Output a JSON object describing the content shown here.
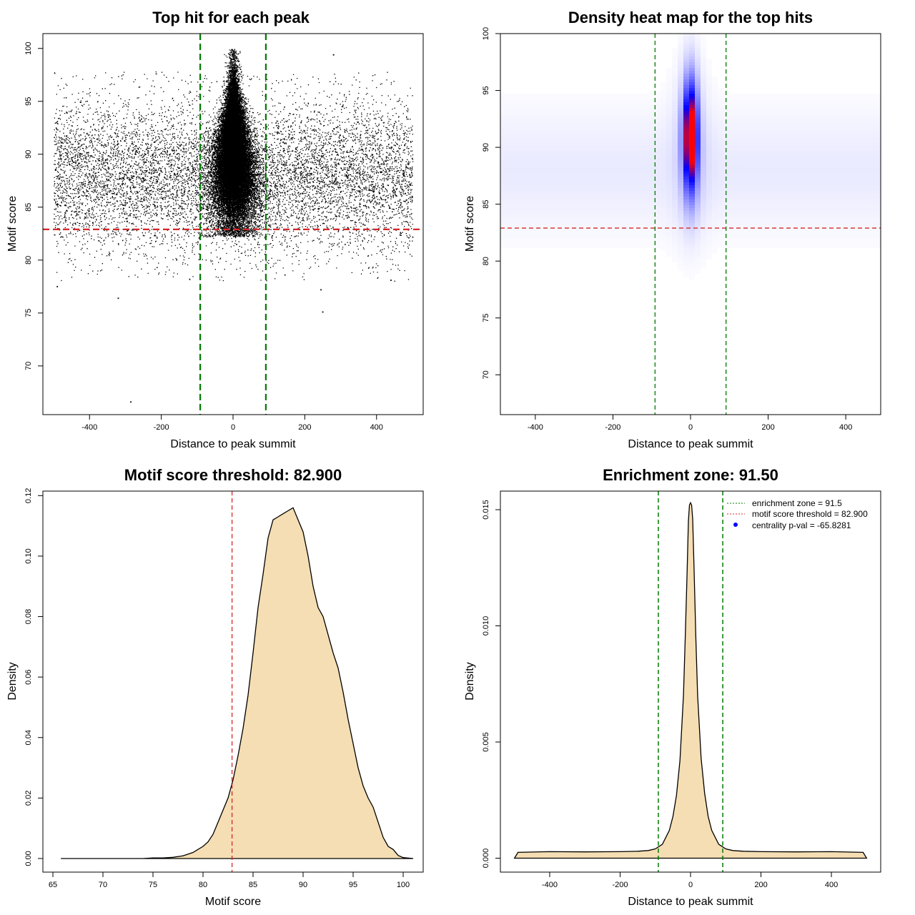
{
  "chart_data": [
    {
      "id": "scatter",
      "type": "scatter",
      "title": "Top hit for each peak",
      "xlabel": "Distance to peak summit",
      "ylabel": "Motif score",
      "xlim": [
        -530,
        530
      ],
      "ylim": [
        65.4,
        101.4
      ],
      "xticks": [
        -400,
        -200,
        0,
        200,
        400
      ],
      "yticks": [
        70,
        75,
        80,
        85,
        90,
        95,
        100
      ],
      "threshold_line": {
        "value": 82.9,
        "color": "#d62728"
      },
      "zone_lines": {
        "values": [
          -91.5,
          91.5
        ],
        "color": "#007a00"
      },
      "point_model": {
        "background": {
          "x_range": [
            -500,
            500
          ],
          "score_mean": 88,
          "score_sd": 3.6,
          "count": 9000
        },
        "core": {
          "x_mean": 0,
          "x_sd": 30,
          "score_mean": 90,
          "score_sd": 3.3,
          "count": 30000
        }
      },
      "outliers": [
        {
          "x": -285,
          "y": 66.6
        },
        {
          "x": 250,
          "y": 75.1
        },
        {
          "x": -320,
          "y": 76.4
        },
        {
          "x": -490,
          "y": 77.5
        },
        {
          "x": 280,
          "y": 99.4
        },
        {
          "x": 440,
          "y": 78.1
        },
        {
          "x": 245,
          "y": 77.2
        }
      ]
    },
    {
      "id": "heatmap",
      "type": "heatmap",
      "title": "Density heat map for the top hits",
      "xlabel": "Distance to peak summit",
      "ylabel": "Motif score",
      "xlim": [
        -490,
        490
      ],
      "ylim": [
        66.5,
        100
      ],
      "xticks": [
        -400,
        -200,
        0,
        200,
        400
      ],
      "yticks": [
        70,
        75,
        80,
        85,
        90,
        95,
        100
      ],
      "threshold_line": {
        "value": 82.9,
        "color": "#d62728"
      },
      "zone_lines": {
        "values": [
          -91.5,
          91.5
        ],
        "color": "#007a00"
      },
      "peak": {
        "x": 0,
        "y": 91,
        "x_sd": 13,
        "y_sd": 3.3
      },
      "colors": [
        "#ffffff",
        "#0000ff",
        "#ff0000"
      ]
    },
    {
      "id": "score-density",
      "type": "area",
      "title": "Motif score threshold: 82.900",
      "xlabel": "Motif score",
      "ylabel": "Density",
      "xlim": [
        64,
        102
      ],
      "ylim": [
        -0.0045,
        0.1215
      ],
      "xticks": [
        65,
        70,
        75,
        80,
        85,
        90,
        95,
        100
      ],
      "yticks": [
        0.0,
        0.02,
        0.04,
        0.06,
        0.08,
        0.1,
        0.12
      ],
      "ytick_labels": [
        "0.00",
        "0.02",
        "0.04",
        "0.06",
        "0.08",
        "0.10",
        "0.12"
      ],
      "fill_color": "#f5deb3",
      "threshold_line": {
        "value": 82.9,
        "color": "#d62728"
      },
      "x": [
        65.8,
        70,
        72,
        74,
        75,
        76,
        77,
        78,
        79,
        80,
        80.5,
        81,
        81.5,
        82,
        82.5,
        83,
        83.5,
        84,
        84.5,
        85,
        85.5,
        86,
        86.5,
        87,
        87.5,
        88,
        88.5,
        89,
        89.5,
        90,
        90.5,
        91,
        91.5,
        92,
        92.5,
        93,
        93.5,
        94,
        94.5,
        95,
        95.5,
        96,
        96.5,
        97,
        97.5,
        98,
        98.5,
        99,
        99.5,
        100,
        101
      ],
      "y": [
        0.0,
        0.0,
        0.0,
        0.0,
        0.0002,
        0.0002,
        0.0004,
        0.0009,
        0.002,
        0.004,
        0.0055,
        0.008,
        0.012,
        0.016,
        0.02,
        0.026,
        0.034,
        0.043,
        0.054,
        0.068,
        0.083,
        0.094,
        0.106,
        0.112,
        0.113,
        0.114,
        0.115,
        0.116,
        0.112,
        0.108,
        0.1,
        0.09,
        0.083,
        0.08,
        0.074,
        0.068,
        0.063,
        0.055,
        0.046,
        0.038,
        0.03,
        0.024,
        0.02,
        0.017,
        0.012,
        0.007,
        0.004,
        0.003,
        0.001,
        0.0003,
        0.0
      ]
    },
    {
      "id": "distance-density",
      "type": "area",
      "title": "Enrichment zone: 91.50",
      "xlabel": "Distance to peak summit",
      "ylabel": "Density",
      "xlim": [
        -540,
        540
      ],
      "ylim": [
        -0.0006,
        0.0158
      ],
      "xticks": [
        -400,
        -200,
        0,
        200,
        400
      ],
      "yticks": [
        0.0,
        0.005,
        0.01,
        0.015
      ],
      "ytick_labels": [
        "0.000",
        "0.005",
        "0.010",
        "0.015"
      ],
      "fill_color": "#f5deb3",
      "zone_lines": {
        "values": [
          -91.5,
          91.5
        ],
        "color": "#007a00"
      },
      "x": [
        -500,
        -490,
        -400,
        -300,
        -200,
        -150,
        -120,
        -100,
        -80,
        -60,
        -50,
        -40,
        -30,
        -20,
        -15,
        -10,
        -6,
        -3,
        0,
        3,
        6,
        10,
        15,
        20,
        30,
        40,
        50,
        60,
        80,
        100,
        120,
        150,
        200,
        300,
        400,
        490,
        500
      ],
      "y": [
        0.0,
        0.00025,
        0.00028,
        0.00027,
        0.00028,
        0.0003,
        0.00033,
        0.0004,
        0.0006,
        0.0012,
        0.0018,
        0.0027,
        0.0042,
        0.007,
        0.0095,
        0.0122,
        0.0145,
        0.0152,
        0.0153,
        0.0152,
        0.0146,
        0.0125,
        0.0095,
        0.007,
        0.0043,
        0.0028,
        0.0018,
        0.0012,
        0.0006,
        0.0004,
        0.00033,
        0.0003,
        0.00028,
        0.00027,
        0.00028,
        0.00025,
        0.0
      ],
      "legend": [
        {
          "label": "enrichment zone = 91.5",
          "color": "#007a00",
          "kind": "line"
        },
        {
          "label": "motif score threshold = 82.900",
          "color": "#d62728",
          "kind": "line"
        },
        {
          "label": "centrality p-val = -65.8281",
          "color": "#0000ff",
          "kind": "point"
        }
      ]
    }
  ]
}
